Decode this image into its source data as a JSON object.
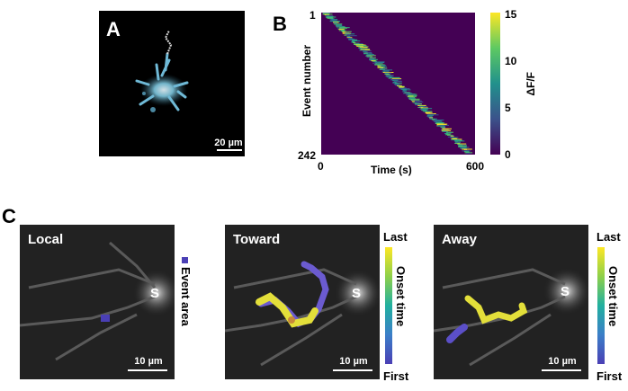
{
  "panelA": {
    "letter": "A",
    "scalebar": "20 µm"
  },
  "panelB": {
    "letter": "B",
    "y_top_tick": "1",
    "y_bottom_tick": "242",
    "ylabel": "Event number",
    "x_left_tick": "0",
    "x_right_tick": "600",
    "xlabel": "Time (s)",
    "colorbar_label": "ΔF/F",
    "colorbar_ticks": [
      "15",
      "10",
      "5",
      "0"
    ]
  },
  "panelC": {
    "letter": "C",
    "images": [
      {
        "title": "Local",
        "soma": "S",
        "scalebar": "10 µm"
      },
      {
        "title": "Toward",
        "soma": "S",
        "scalebar": "10 µm"
      },
      {
        "title": "Away",
        "soma": "S",
        "scalebar": "10 µm"
      }
    ],
    "event_area_label": "Event area",
    "onset_label": "Onset time",
    "last_label": "Last",
    "first_label": "First"
  },
  "colors": {
    "heatmap_bg": "#440154",
    "event_area": "#4a3fb5",
    "accent_yellow": "#fde725"
  },
  "chart_data": {
    "type": "heatmap",
    "xlabel": "Time (s)",
    "ylabel": "Event number",
    "xlim": [
      0,
      600
    ],
    "ylim": [
      1,
      242
    ],
    "colorbar_range": [
      0,
      15
    ],
    "colorbar_label": "ΔF/F"
  }
}
